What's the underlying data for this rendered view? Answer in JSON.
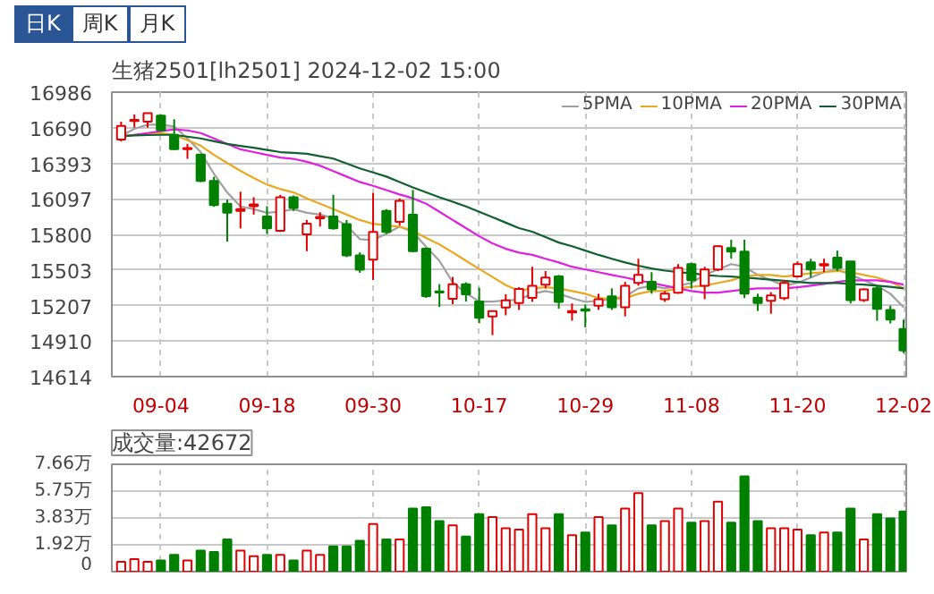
{
  "chart_data": [
    {
      "type": "candlestick",
      "title": "生猪2501[lh2501] 2024-12-02 15:00",
      "annotations": [
        "日K",
        "周K",
        "月K"
      ],
      "categories": [
        null,
        null,
        null,
        "09-04",
        null,
        null,
        null,
        null,
        null,
        null,
        null,
        "09-18",
        null,
        null,
        null,
        null,
        null,
        null,
        null,
        "09-30",
        null,
        null,
        null,
        null,
        null,
        null,
        null,
        "10-17",
        null,
        null,
        null,
        null,
        null,
        null,
        null,
        "10-29",
        null,
        null,
        null,
        null,
        null,
        null,
        null,
        "11-08",
        null,
        null,
        null,
        null,
        null,
        null,
        null,
        "11-20",
        null,
        null,
        null,
        null,
        null,
        null,
        null,
        "12-02"
      ],
      "ohlc": [
        [
          16590,
          16740,
          16575,
          16705
        ],
        [
          16745,
          16800,
          16690,
          16750
        ],
        [
          16740,
          16815,
          16690,
          16810
        ],
        [
          16790,
          16800,
          16665,
          16667
        ],
        [
          16630,
          16760,
          16505,
          16510
        ],
        [
          16510,
          16555,
          16430,
          16520
        ],
        [
          16465,
          16470,
          16235,
          16245
        ],
        [
          16245,
          16280,
          16030,
          16045
        ],
        [
          16055,
          16090,
          15740,
          15980
        ],
        [
          15995,
          16155,
          15850,
          16010
        ],
        [
          16035,
          16110,
          15965,
          16050
        ],
        [
          15950,
          16035,
          15805,
          15850
        ],
        [
          15830,
          16130,
          15820,
          16110
        ],
        [
          16110,
          16125,
          15995,
          16020
        ],
        [
          15800,
          15920,
          15660,
          15890
        ],
        [
          15935,
          15985,
          15865,
          15945
        ],
        [
          15950,
          16130,
          15840,
          15850
        ],
        [
          15885,
          15920,
          15610,
          15625
        ],
        [
          15625,
          15650,
          15480,
          15505
        ],
        [
          15590,
          16145,
          15420,
          15820
        ],
        [
          15995,
          16010,
          15805,
          15820
        ],
        [
          15905,
          16100,
          15875,
          16080
        ],
        [
          15965,
          16170,
          15650,
          15660
        ],
        [
          15680,
          15690,
          15270,
          15285
        ],
        [
          15320,
          15385,
          15195,
          15315
        ],
        [
          15263,
          15445,
          15218,
          15385
        ],
        [
          15385,
          15400,
          15240,
          15300
        ],
        [
          15240,
          15355,
          15060,
          15105
        ],
        [
          15115,
          15160,
          14960,
          15160
        ],
        [
          15190,
          15300,
          15125,
          15250
        ],
        [
          15227,
          15360,
          15170,
          15345
        ],
        [
          15270,
          15530,
          15238,
          15372
        ],
        [
          15380,
          15494,
          15350,
          15440
        ],
        [
          15450,
          15462,
          15180,
          15237
        ],
        [
          15150,
          15224,
          15080,
          15160
        ],
        [
          15175,
          15215,
          15025,
          15165
        ],
        [
          15206,
          15305,
          15170,
          15260
        ],
        [
          15283,
          15350,
          15170,
          15193
        ],
        [
          15193,
          15404,
          15116,
          15372
        ],
        [
          15395,
          15597,
          15372,
          15462
        ],
        [
          15404,
          15485,
          15305,
          15341
        ],
        [
          15260,
          15327,
          15237,
          15305
        ],
        [
          15314,
          15552,
          15305,
          15521
        ],
        [
          15552,
          15566,
          15350,
          15417
        ],
        [
          15372,
          15530,
          15260,
          15507
        ],
        [
          15507,
          15710,
          15494,
          15701
        ],
        [
          15687,
          15755,
          15597,
          15656
        ],
        [
          15656,
          15755,
          15269,
          15305
        ],
        [
          15273,
          15305,
          15161,
          15228
        ],
        [
          15246,
          15318,
          15138,
          15291
        ],
        [
          15269,
          15417,
          15251,
          15395
        ],
        [
          15449,
          15575,
          15440,
          15552
        ],
        [
          15566,
          15597,
          15440,
          15507
        ],
        [
          15540,
          15597,
          15485,
          15548
        ],
        [
          15606,
          15665,
          15494,
          15521
        ],
        [
          15575,
          15575,
          15224,
          15251
        ],
        [
          15251,
          15350,
          15237,
          15341
        ],
        [
          15350,
          15372,
          15080,
          15179
        ],
        [
          15170,
          15206,
          15057,
          15089
        ],
        [
          15012,
          15089,
          14810,
          14832
        ]
      ],
      "colors": [
        "#e00000",
        "#e00000",
        "#e00000",
        "#008000",
        "#008000",
        "#e00000",
        "#008000",
        "#008000",
        "#008000",
        "#e00000",
        "#e00000",
        "#008000",
        "#e00000",
        "#008000",
        "#e00000",
        "#e00000",
        "#008000",
        "#008000",
        "#008000",
        "#e00000",
        "#008000",
        "#e00000",
        "#008000",
        "#008000",
        "#008000",
        "#e00000",
        "#008000",
        "#008000",
        "#e00000",
        "#e00000",
        "#e00000",
        "#e00000",
        "#e00000",
        "#008000",
        "#e00000",
        "#008000",
        "#e00000",
        "#008000",
        "#e00000",
        "#e00000",
        "#008000",
        "#e00000",
        "#e00000",
        "#008000",
        "#e00000",
        "#e00000",
        "#008000",
        "#008000",
        "#008000",
        "#e00000",
        "#e00000",
        "#e00000",
        "#008000",
        "#e00000",
        "#008000",
        "#008000",
        "#e00000",
        "#008000",
        "#008000",
        "#008000"
      ],
      "series": [
        {
          "type": "line",
          "name": "5PMA",
          "color": "#a0a0a0",
          "values": [
            16620,
            16680,
            16715,
            16715,
            16700,
            16600,
            16486,
            16305,
            16150,
            16033,
            16010,
            15980,
            15990,
            16010,
            15980,
            15965,
            15935,
            15875,
            15760,
            15753,
            15805,
            15865,
            15820,
            15695,
            15580,
            15400,
            15310,
            15240,
            15240,
            15250,
            15255,
            15305,
            15327,
            15305,
            15269,
            15237,
            15246,
            15260,
            15282,
            15350,
            15372,
            15350,
            15372,
            15395,
            15462,
            15507,
            15552,
            15530,
            15462,
            15417,
            15372,
            15395,
            15440,
            15485,
            15507,
            15462,
            15417,
            15372,
            15305,
            15192
          ]
        },
        {
          "type": "line",
          "name": "10PMA",
          "color": "#e8a820",
          "values": [
            16620,
            16630,
            16640,
            16645,
            16630,
            16585,
            16540,
            16463,
            16395,
            16330,
            16270,
            16215,
            16178,
            16150,
            16100,
            16056,
            16010,
            15965,
            15920,
            15888,
            15875,
            15865,
            15830,
            15770,
            15716,
            15650,
            15580,
            15512,
            15445,
            15377,
            15330,
            15350,
            15359,
            15350,
            15327,
            15305,
            15269,
            15260,
            15269,
            15305,
            15327,
            15327,
            15350,
            15363,
            15372,
            15395,
            15417,
            15449,
            15462,
            15462,
            15449,
            15462,
            15476,
            15485,
            15494,
            15485,
            15462,
            15440,
            15404,
            15350
          ]
        },
        {
          "type": "line",
          "name": "20PMA",
          "color": "#e020e0",
          "values": [
            16613,
            16630,
            16645,
            16660,
            16676,
            16667,
            16645,
            16600,
            16554,
            16509,
            16486,
            16463,
            16440,
            16430,
            16405,
            16373,
            16328,
            16282,
            16237,
            16205,
            16169,
            16133,
            16101,
            16056,
            15988,
            15920,
            15852,
            15784,
            15725,
            15680,
            15648,
            15629,
            15597,
            15566,
            15530,
            15507,
            15485,
            15462,
            15440,
            15417,
            15395,
            15372,
            15350,
            15327,
            15314,
            15314,
            15327,
            15341,
            15350,
            15350,
            15350,
            15359,
            15372,
            15386,
            15404,
            15417,
            15417,
            15417,
            15404,
            15381
          ]
        },
        {
          "type": "line",
          "name": "30PMA",
          "color": "#106030",
          "values": [
            16620,
            16625,
            16628,
            16630,
            16630,
            16615,
            16600,
            16577,
            16554,
            16538,
            16522,
            16504,
            16486,
            16479,
            16472,
            16452,
            16432,
            16391,
            16350,
            16316,
            16282,
            16237,
            16192,
            16151,
            16110,
            16072,
            16033,
            15988,
            15943,
            15898,
            15852,
            15822,
            15777,
            15732,
            15701,
            15665,
            15629,
            15597,
            15566,
            15539,
            15516,
            15498,
            15485,
            15476,
            15462,
            15453,
            15449,
            15440,
            15431,
            15422,
            15413,
            15404,
            15395,
            15395,
            15395,
            15386,
            15381,
            15372,
            15363,
            15350
          ]
        }
      ],
      "ylim": [
        14614,
        16986
      ],
      "yticks": [
        14614,
        14910,
        15207,
        15503,
        15800,
        16097,
        16393,
        16690,
        16986
      ],
      "grid": true,
      "legend": "top right"
    },
    {
      "type": "bar",
      "title": "成交量:42672",
      "categories": [
        null,
        null,
        null,
        null,
        null,
        null,
        null,
        null,
        null,
        null,
        null,
        null,
        null,
        null,
        null,
        null,
        null,
        null,
        null,
        null,
        null,
        null,
        null,
        null,
        null,
        null,
        null,
        null,
        null,
        null,
        null,
        null,
        null,
        null,
        null,
        null,
        null,
        null,
        null,
        null,
        null,
        null,
        null,
        null,
        null,
        null,
        null,
        null,
        null,
        null,
        null,
        null,
        null,
        null,
        null,
        null,
        null,
        null,
        null,
        null
      ],
      "values": [
        0.7,
        0.9,
        0.7,
        0.8,
        1.2,
        0.8,
        1.5,
        1.4,
        2.3,
        1.5,
        1.1,
        1.2,
        1.2,
        0.8,
        1.5,
        1.2,
        1.8,
        1.8,
        2.2,
        3.4,
        2.3,
        2.3,
        4.5,
        4.6,
        3.6,
        3.3,
        2.5,
        4.1,
        3.9,
        3.1,
        3.0,
        4.1,
        3.1,
        4.1,
        2.6,
        2.8,
        3.9,
        3.3,
        4.5,
        5.6,
        3.3,
        3.6,
        4.5,
        3.5,
        3.6,
        5.0,
        3.5,
        6.8,
        3.6,
        3.1,
        3.1,
        3.0,
        2.6,
        2.8,
        2.8,
        4.5,
        2.3,
        4.1,
        3.8,
        4.3
      ],
      "colors": [
        "#e00000",
        "#e00000",
        "#e00000",
        "#008000",
        "#008000",
        "#e00000",
        "#008000",
        "#008000",
        "#008000",
        "#e00000",
        "#e00000",
        "#008000",
        "#e00000",
        "#008000",
        "#e00000",
        "#e00000",
        "#008000",
        "#008000",
        "#008000",
        "#e00000",
        "#008000",
        "#e00000",
        "#008000",
        "#008000",
        "#008000",
        "#e00000",
        "#008000",
        "#008000",
        "#e00000",
        "#e00000",
        "#e00000",
        "#e00000",
        "#e00000",
        "#008000",
        "#e00000",
        "#008000",
        "#e00000",
        "#008000",
        "#e00000",
        "#e00000",
        "#008000",
        "#e00000",
        "#e00000",
        "#008000",
        "#e00000",
        "#e00000",
        "#008000",
        "#008000",
        "#008000",
        "#e00000",
        "#e00000",
        "#e00000",
        "#008000",
        "#e00000",
        "#008000",
        "#008000",
        "#e00000",
        "#008000",
        "#008000",
        "#008000"
      ],
      "ylim": [
        0,
        7.66
      ],
      "yticks": [
        0,
        {
          "value": 1.92,
          "label": "1.92万"
        },
        {
          "value": 3.83,
          "label": "3.83万"
        },
        {
          "value": 5.75,
          "label": "5.75万"
        },
        {
          "value": 7.66,
          "label": "7.66万"
        }
      ],
      "grid": true
    }
  ]
}
